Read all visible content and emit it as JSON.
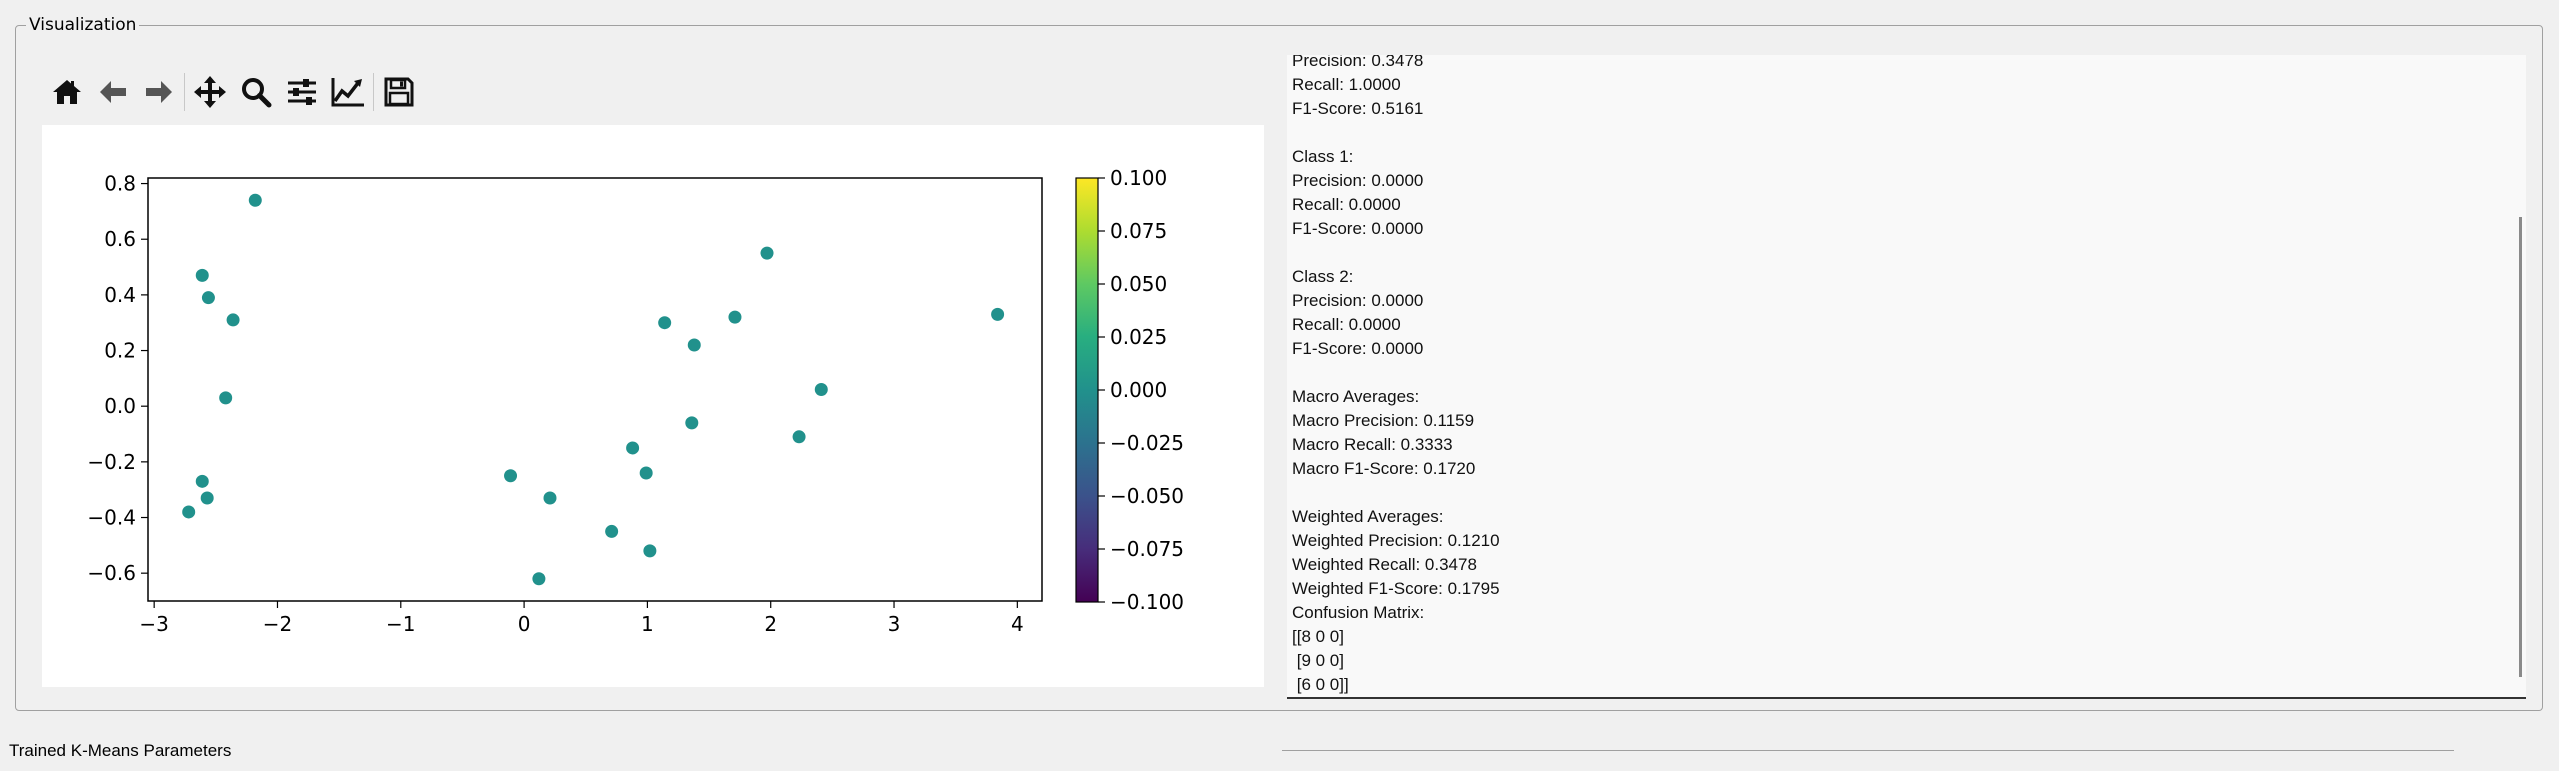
{
  "group": {
    "title": "Visualization"
  },
  "toolbar": {
    "buttons": [
      {
        "name": "home-icon"
      },
      {
        "name": "back-arrow-icon"
      },
      {
        "name": "forward-arrow-icon"
      },
      {
        "name": "pan-icon"
      },
      {
        "name": "zoom-icon"
      },
      {
        "name": "configure-subplots-icon"
      },
      {
        "name": "edit-axis-icon"
      },
      {
        "name": "save-icon"
      }
    ]
  },
  "chart_data": [
    {
      "type": "scatter",
      "title": "",
      "xlabel": "",
      "ylabel": "",
      "xlim": [
        -3.05,
        4.2
      ],
      "ylim": [
        -0.7,
        0.82
      ],
      "x_ticks": [
        "−3",
        "−2",
        "−1",
        "0",
        "1",
        "2",
        "3",
        "4"
      ],
      "x_tick_values": [
        -3,
        -2,
        -1,
        0,
        1,
        2,
        3,
        4
      ],
      "y_ticks": [
        "0.8",
        "0.6",
        "0.4",
        "0.2",
        "0.0",
        "−0.2",
        "−0.4",
        "−0.6"
      ],
      "y_tick_values": [
        0.8,
        0.6,
        0.4,
        0.2,
        0.0,
        -0.2,
        -0.4,
        -0.6
      ],
      "point_color": "#21918c",
      "points": [
        {
          "x": -2.18,
          "y": 0.74
        },
        {
          "x": -2.61,
          "y": 0.47
        },
        {
          "x": -2.56,
          "y": 0.39
        },
        {
          "x": -2.36,
          "y": 0.31
        },
        {
          "x": -2.42,
          "y": 0.03
        },
        {
          "x": -2.61,
          "y": -0.27
        },
        {
          "x": -2.57,
          "y": -0.33
        },
        {
          "x": -2.72,
          "y": -0.38
        },
        {
          "x": -0.11,
          "y": -0.25
        },
        {
          "x": 0.21,
          "y": -0.33
        },
        {
          "x": 0.12,
          "y": -0.62
        },
        {
          "x": 0.71,
          "y": -0.45
        },
        {
          "x": 0.88,
          "y": -0.15
        },
        {
          "x": 0.99,
          "y": -0.24
        },
        {
          "x": 1.02,
          "y": -0.52
        },
        {
          "x": 1.14,
          "y": 0.3
        },
        {
          "x": 1.38,
          "y": 0.22
        },
        {
          "x": 1.36,
          "y": -0.06
        },
        {
          "x": 1.71,
          "y": 0.32
        },
        {
          "x": 1.97,
          "y": 0.55
        },
        {
          "x": 2.41,
          "y": 0.06
        },
        {
          "x": 2.23,
          "y": -0.11
        },
        {
          "x": 3.84,
          "y": 0.33
        }
      ],
      "colorbar": {
        "colormap": "viridis",
        "range": [
          -0.1,
          0.1
        ],
        "ticks": [
          "0.100",
          "0.075",
          "0.050",
          "0.025",
          "0.000",
          "−0.025",
          "−0.050",
          "−0.075",
          "−0.100"
        ],
        "tick_values": [
          0.1,
          0.075,
          0.05,
          0.025,
          0.0,
          -0.025,
          -0.05,
          -0.075,
          -0.1
        ]
      }
    }
  ],
  "report": {
    "lines": [
      "Precision: 0.3478",
      "Recall: 1.0000",
      "F1-Score: 0.5161",
      "",
      "Class 1:",
      "Precision: 0.0000",
      "Recall: 0.0000",
      "F1-Score: 0.0000",
      "",
      "Class 2:",
      "Precision: 0.0000",
      "Recall: 0.0000",
      "F1-Score: 0.0000",
      "",
      "Macro Averages:",
      "Macro Precision: 0.1159",
      "Macro Recall: 0.3333",
      "Macro F1-Score: 0.1720",
      "",
      "Weighted Averages:",
      "Weighted Precision: 0.1210",
      "Weighted Recall: 0.3478",
      "Weighted F1-Score: 0.1795",
      "Confusion Matrix:",
      "[[8 0 0]",
      " [9 0 0]",
      " [6 0 0]]"
    ]
  },
  "bottom": {
    "label": "Trained K-Means Parameters"
  }
}
